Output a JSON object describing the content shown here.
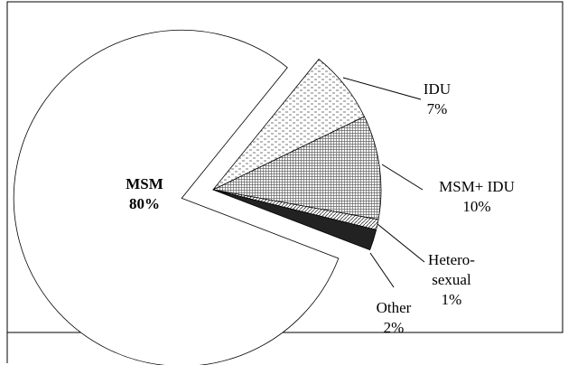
{
  "chart_data": {
    "type": "pie",
    "categories": [
      "MSM",
      "IDU",
      "MSM+ IDU",
      "Hetero-\nsexual",
      "Other"
    ],
    "values": [
      80,
      7,
      10,
      1,
      2
    ],
    "value_labels": [
      "80%",
      "7%",
      "10%",
      "1%",
      "2%"
    ],
    "colors": [
      "#ffffff",
      "#ffffff",
      "#ffffff",
      "#ffffff",
      "#222222"
    ]
  }
}
